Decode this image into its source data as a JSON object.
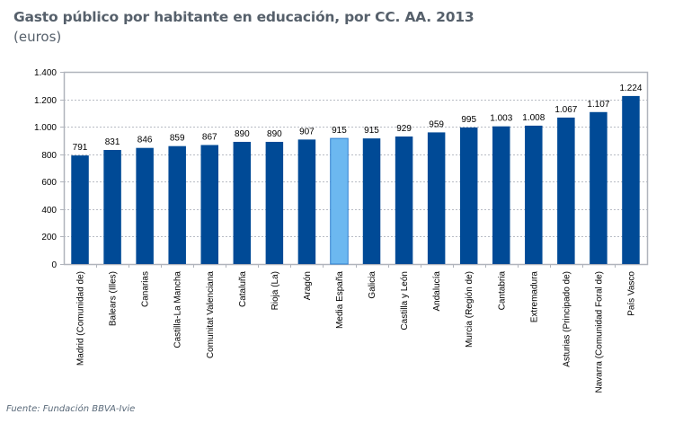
{
  "header": {
    "title": "Gasto público por habitante en educación, por CC. AA. 2013",
    "subtitle": "(euros)"
  },
  "footer": {
    "source": "Fuente: Fundación BBVA-Ivie"
  },
  "colors": {
    "bar": "#004a96",
    "highlight_bar": "#6cb8f0",
    "highlight_border": "#2f7fd0",
    "grid": "#b8bcc4",
    "frame": "#b0b4bc"
  },
  "chart_data": {
    "type": "bar",
    "title": "Gasto público por habitante en educación, por CC. AA. 2013",
    "subtitle": "(euros)",
    "xlabel": "",
    "ylabel": "",
    "ylim": [
      0,
      1400
    ],
    "yticks": [
      0,
      200,
      400,
      600,
      800,
      1000,
      1200,
      1400
    ],
    "ytick_labels": [
      "0",
      "200",
      "400",
      "600",
      "800",
      "1.000",
      "1.200",
      "1.400"
    ],
    "grid": true,
    "legend": "none",
    "categories": [
      "Madrid (Comunidad de)",
      "Balears (Illes)",
      "Canarias",
      "Castilla-La Mancha",
      "Comunitat Valenciana",
      "Cataluña",
      "Rioja (La)",
      "Aragón",
      "Media España",
      "Galicia",
      "Castilla y León",
      "Andalucía",
      "Murcia (Región de)",
      "Cantabria",
      "Extremadura",
      "Asturias (Principado de)",
      "Navarra (Comunidad Foral de)",
      "País Vasco"
    ],
    "values": [
      791,
      831,
      846,
      859,
      867,
      890,
      890,
      907,
      915,
      915,
      929,
      959,
      995,
      1003,
      1008,
      1067,
      1107,
      1224
    ],
    "data_labels": [
      "791",
      "831",
      "846",
      "859",
      "867",
      "890",
      "890",
      "907",
      "915",
      "915",
      "929",
      "959",
      "995",
      "1.003",
      "1.008",
      "1.067",
      "1.107",
      "1.224"
    ],
    "highlight": [
      "Media España"
    ]
  }
}
